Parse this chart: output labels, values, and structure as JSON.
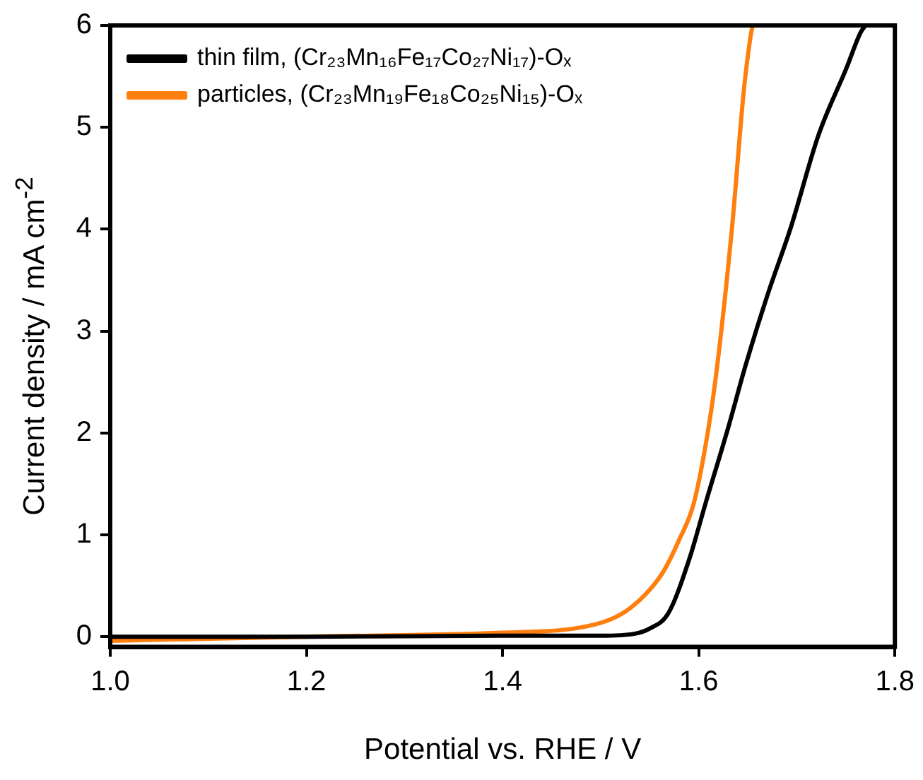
{
  "chart_data": {
    "type": "line",
    "xlabel": "Potential vs. RHE / V",
    "ylabel": "Current density / mA cm$^{-2}$",
    "xlim": [
      1.0,
      1.8
    ],
    "xticks": [
      {
        "value": 1.0,
        "label": "1.0"
      },
      {
        "value": 1.2,
        "label": "1.2"
      },
      {
        "value": 1.4,
        "label": "1.4"
      },
      {
        "value": 1.6,
        "label": "1.6"
      },
      {
        "value": 1.8,
        "label": "1.8"
      }
    ],
    "ylim": [
      -0.1,
      6
    ],
    "yticks": [
      0,
      1,
      2,
      3,
      4,
      5,
      6
    ],
    "grid": false,
    "legend": "top left",
    "marker": "none",
    "line_style": "solid",
    "series": [
      {
        "name": "thin film, (Cr₂₃Mn₁₆Fe₁₇Co₂₇Ni₁₇)-Oₓ",
        "color": "#000000",
        "x": [
          1.0,
          1.2,
          1.4,
          1.5,
          1.535,
          1.55,
          1.569,
          1.59,
          1.607,
          1.63,
          1.648,
          1.67,
          1.694,
          1.722,
          1.751,
          1.765,
          1.77
        ],
        "values": [
          0.0,
          0.0,
          0.01,
          0.01,
          0.03,
          0.08,
          0.23,
          0.75,
          1.31,
          2.05,
          2.67,
          3.35,
          4.02,
          4.92,
          5.59,
          5.93,
          6.0
        ]
      },
      {
        "name": "particles, (Cr₂₃Mn₁₉Fe₁₈Co₂₅Ni₁₅)-Oₓ",
        "color": "#ff7f0e",
        "x": [
          1.0,
          1.2,
          1.4,
          1.473,
          1.51,
          1.53,
          1.55,
          1.564,
          1.58,
          1.595,
          1.61,
          1.619,
          1.634,
          1.646,
          1.653,
          1.655
        ],
        "values": [
          -0.04,
          0.0,
          0.04,
          0.08,
          0.17,
          0.28,
          0.46,
          0.64,
          0.95,
          1.31,
          2.05,
          2.67,
          4.02,
          5.36,
          5.9,
          6.0
        ]
      }
    ]
  }
}
